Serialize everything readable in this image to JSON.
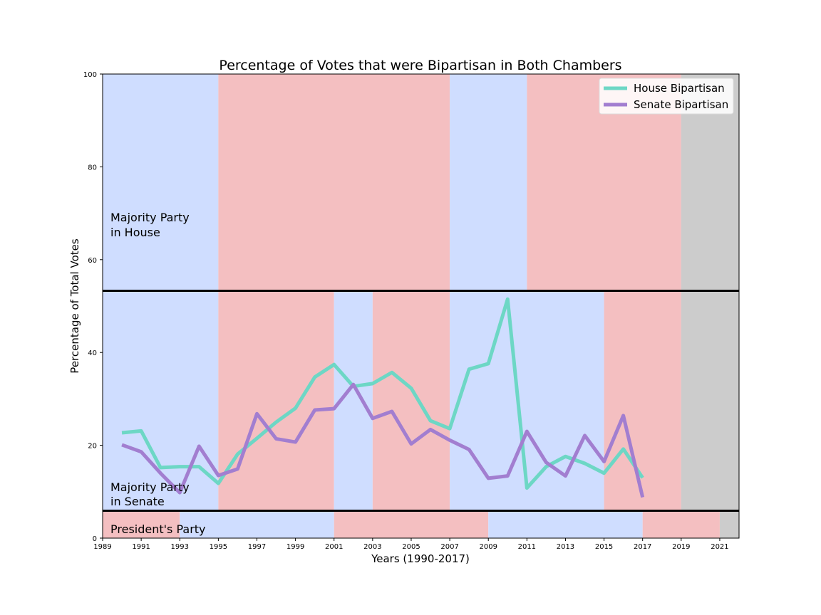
{
  "chart_data": {
    "type": "line",
    "title": "Percentage of Votes that were Bipartisan in Both Chambers",
    "xlabel": "Years (1990-2017)",
    "ylabel": "Percentage of Total Votes",
    "xlim": [
      1989,
      2022
    ],
    "ylim": [
      0,
      100
    ],
    "x_ticks": [
      1989,
      1991,
      1993,
      1995,
      1997,
      1999,
      2001,
      2003,
      2005,
      2007,
      2009,
      2011,
      2013,
      2015,
      2017,
      2019,
      2021
    ],
    "y_ticks": [
      0,
      20,
      40,
      60,
      80,
      100
    ],
    "legend_position": "top-right",
    "series": [
      {
        "name": "House Bipartisan",
        "color": "#6dd7c5",
        "x": [
          1990,
          1991,
          1992,
          1993,
          1994,
          1995,
          1996,
          1997,
          1998,
          1999,
          2000,
          2001,
          2002,
          2003,
          2004,
          2005,
          2006,
          2007,
          2008,
          2009,
          2010,
          2011,
          2012,
          2013,
          2014,
          2015,
          2016,
          2017
        ],
        "values": [
          22.7,
          23.1,
          15.2,
          15.4,
          15.4,
          11.8,
          18.1,
          21.5,
          25.0,
          28.0,
          34.7,
          37.4,
          32.7,
          33.3,
          35.7,
          32.3,
          25.3,
          23.6,
          36.4,
          37.6,
          51.5,
          10.8,
          15.4,
          17.6,
          16.1,
          14.0,
          19.2,
          13.0
        ]
      },
      {
        "name": "Senate Bipartisan",
        "color": "#a27ed0",
        "x": [
          1990,
          1991,
          1992,
          1993,
          1994,
          1995,
          1996,
          1997,
          1998,
          1999,
          2000,
          2001,
          2002,
          2003,
          2004,
          2005,
          2006,
          2007,
          2008,
          2009,
          2010,
          2011,
          2012,
          2013,
          2014,
          2015,
          2016,
          2017
        ],
        "values": [
          20.1,
          18.6,
          14.0,
          9.8,
          19.8,
          13.5,
          14.9,
          26.8,
          21.4,
          20.7,
          27.6,
          27.9,
          33.1,
          25.8,
          27.3,
          20.3,
          23.4,
          21.1,
          19.1,
          12.9,
          13.4,
          23.0,
          16.3,
          13.4,
          22.1,
          16.5,
          26.4,
          8.8
        ]
      }
    ],
    "bands": {
      "house": {
        "label_line1": "Majority Party",
        "label_line2": "in House",
        "y_range": [
          53.3,
          100
        ],
        "segments": [
          {
            "start": 1989,
            "end": 1995,
            "party": "D"
          },
          {
            "start": 1995,
            "end": 2007,
            "party": "R"
          },
          {
            "start": 2007,
            "end": 2011,
            "party": "D"
          },
          {
            "start": 2011,
            "end": 2019,
            "party": "R"
          },
          {
            "start": 2019,
            "end": 2022,
            "party": "N"
          }
        ]
      },
      "senate": {
        "label_line1": "Majority Party",
        "label_line2": "in Senate",
        "y_range": [
          5.9,
          53.3
        ],
        "segments": [
          {
            "start": 1989,
            "end": 1995,
            "party": "D"
          },
          {
            "start": 1995,
            "end": 2001,
            "party": "R"
          },
          {
            "start": 2001,
            "end": 2003,
            "party": "D"
          },
          {
            "start": 2003,
            "end": 2007,
            "party": "R"
          },
          {
            "start": 2007,
            "end": 2015,
            "party": "D"
          },
          {
            "start": 2015,
            "end": 2019,
            "party": "R"
          },
          {
            "start": 2019,
            "end": 2022,
            "party": "N"
          }
        ]
      },
      "president": {
        "label": "President's Party",
        "y_range": [
          0,
          5.9
        ],
        "segments": [
          {
            "start": 1989,
            "end": 1993,
            "party": "R"
          },
          {
            "start": 1993,
            "end": 2001,
            "party": "D"
          },
          {
            "start": 2001,
            "end": 2009,
            "party": "R"
          },
          {
            "start": 2009,
            "end": 2017,
            "party": "D"
          },
          {
            "start": 2017,
            "end": 2021,
            "party": "R"
          },
          {
            "start": 2021,
            "end": 2022,
            "party": "N"
          }
        ]
      }
    },
    "party_colors": {
      "D": "#cfddff",
      "R": "#f4bfc1",
      "N": "#cccccc"
    },
    "divider_color": "#000000"
  }
}
